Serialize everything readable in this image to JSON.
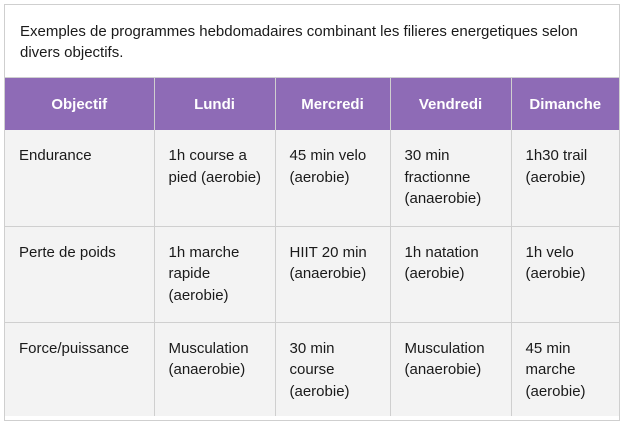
{
  "caption": "Exemples de programmes hebdomadaires combinant les filieres energetiques selon divers objectifs.",
  "colors": {
    "header_bg": "#8e6bb6",
    "header_text": "#ffffff",
    "cell_bg": "#f3f3f3",
    "border": "#cfcfcf"
  },
  "table": {
    "headers": [
      "Objectif",
      "Lundi",
      "Mercredi",
      "Vendredi",
      "Dimanche"
    ],
    "rows": [
      [
        "Endurance",
        "1h course a pied (aerobie)",
        "45 min velo (aerobie)",
        "30 min fractionne (anaerobie)",
        "1h30 trail (aerobie)"
      ],
      [
        "Perte de poids",
        "1h marche rapide (aerobie)",
        "HIIT 20 min (anaerobie)",
        "1h natation (aerobie)",
        "1h velo (aerobie)"
      ],
      [
        "Force/puissance",
        "Musculation (anaerobie)",
        "30 min course (aerobie)",
        "Musculation (anaerobie)",
        "45 min marche (aerobie)"
      ]
    ]
  }
}
